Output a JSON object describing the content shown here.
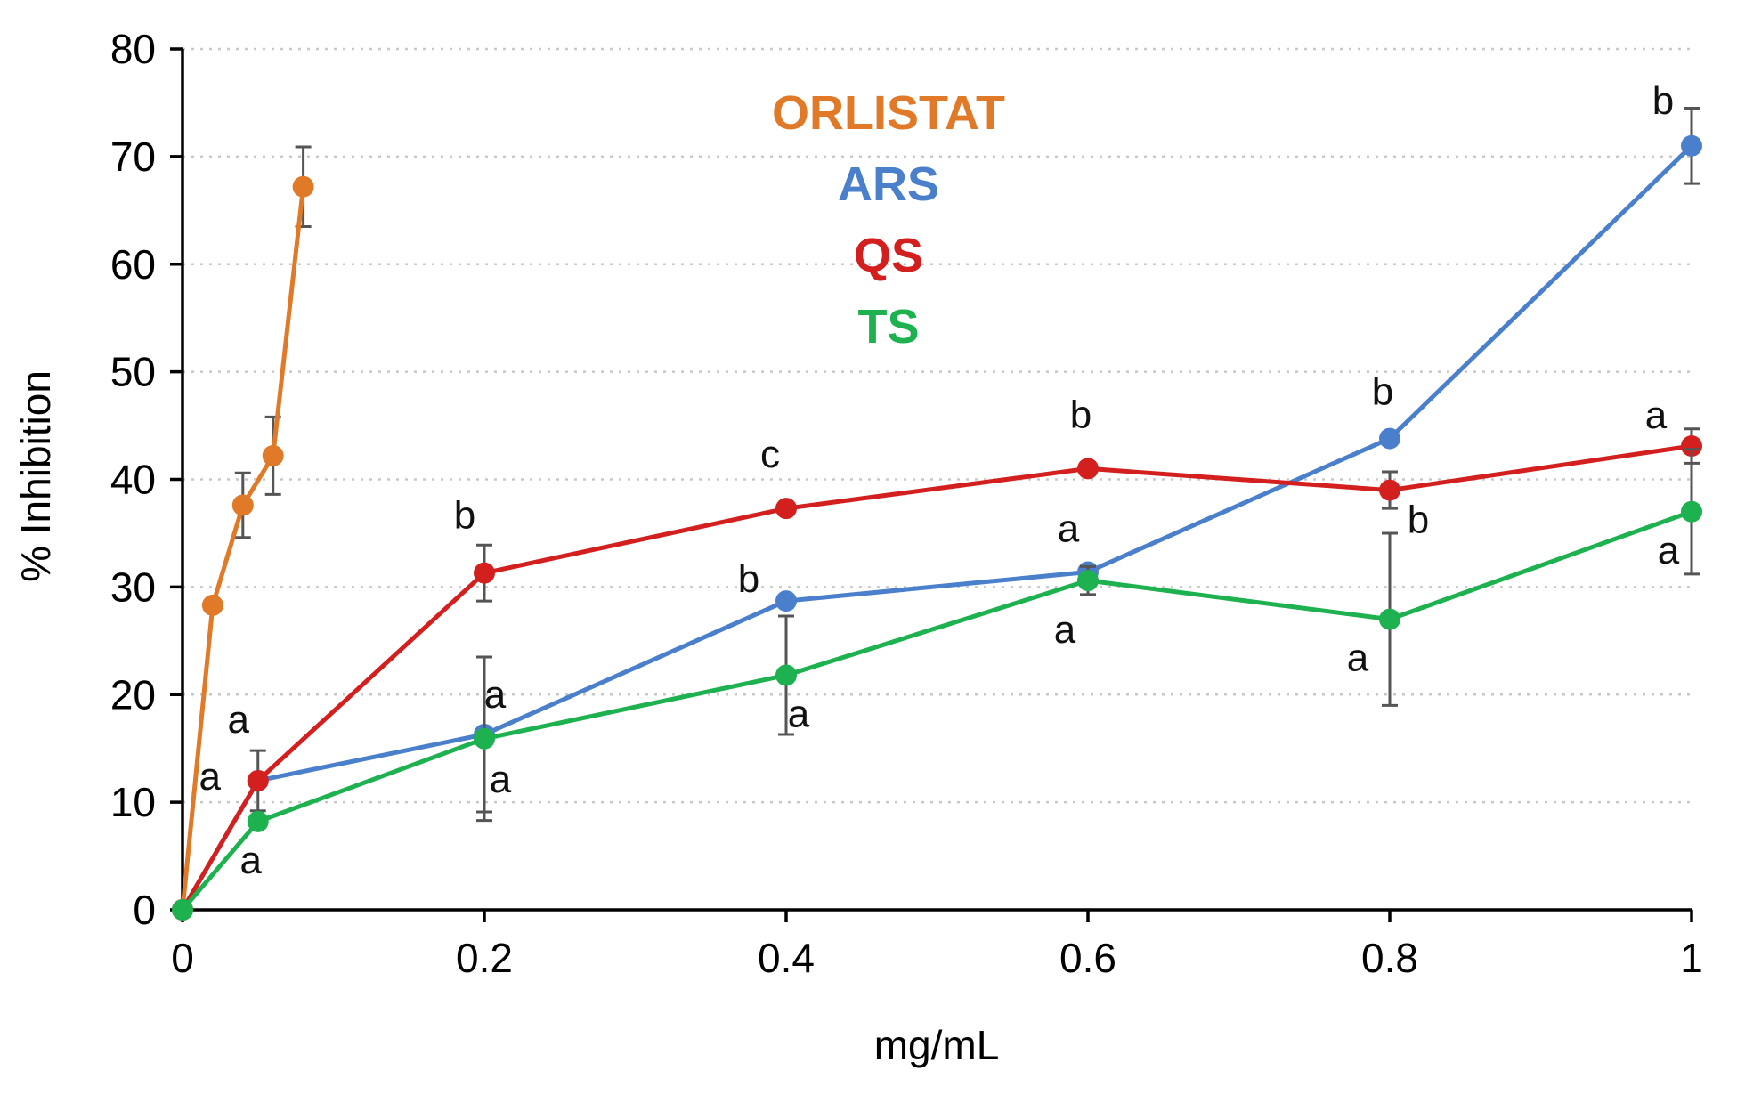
{
  "chart_data": {
    "type": "line",
    "title": "",
    "xlabel": "mg/mL",
    "ylabel": "% Inhibition",
    "xlim": [
      0,
      1
    ],
    "ylim": [
      0,
      80
    ],
    "x_ticks": [
      0,
      0.2,
      0.4,
      0.6,
      0.8,
      1
    ],
    "x_tick_labels": [
      "0",
      "0.2",
      "0.4",
      "0.6",
      "0.8",
      "1"
    ],
    "y_ticks": [
      0,
      10,
      20,
      30,
      40,
      50,
      60,
      70,
      80
    ],
    "y_tick_labels": [
      "0",
      "10",
      "20",
      "30",
      "40",
      "50",
      "60",
      "70",
      "80"
    ],
    "grid": "horizontal dotted",
    "legend_placement": "top-center",
    "series": [
      {
        "name": "ORLISTAT",
        "color": "#E07A28",
        "x": [
          0,
          0.02,
          0.04,
          0.06,
          0.08
        ],
        "values": [
          0,
          28.3,
          37.6,
          42.2,
          67.2
        ],
        "error": [
          0,
          0,
          3.0,
          3.6,
          3.7
        ],
        "annotations": []
      },
      {
        "name": "ARS",
        "color": "#4A7FCB",
        "x": [
          0,
          0.05,
          0.2,
          0.4,
          0.6,
          0.8,
          1
        ],
        "values": [
          0,
          12.0,
          16.3,
          28.7,
          31.4,
          43.8,
          71.0
        ],
        "error": [
          0,
          2.8,
          7.2,
          0,
          0,
          0,
          3.5
        ],
        "annotations": [
          {
            "x": 0.05,
            "text": "a"
          },
          {
            "x": 0.2,
            "text": "a"
          },
          {
            "x": 0.4,
            "text": "b"
          },
          {
            "x": 0.6,
            "text": "a"
          },
          {
            "x": 0.8,
            "text": "b"
          },
          {
            "x": 1,
            "text": "b"
          }
        ]
      },
      {
        "name": "QS",
        "color": "#D41F1F",
        "x": [
          0,
          0.05,
          0.2,
          0.4,
          0.6,
          0.8,
          1
        ],
        "values": [
          0,
          12.0,
          31.3,
          37.3,
          41.0,
          39.0,
          43.1
        ],
        "error": [
          0,
          0,
          2.6,
          0,
          0,
          1.7,
          1.6
        ],
        "annotations": [
          {
            "x": 0.05,
            "text": "a"
          },
          {
            "x": 0.2,
            "text": "b"
          },
          {
            "x": 0.4,
            "text": "c"
          },
          {
            "x": 0.6,
            "text": "b"
          },
          {
            "x": 0.8,
            "text": "b"
          },
          {
            "x": 1,
            "text": "a"
          }
        ]
      },
      {
        "name": "TS",
        "color": "#1DB14F",
        "x": [
          0,
          0.05,
          0.2,
          0.4,
          0.6,
          0.8,
          1
        ],
        "values": [
          0,
          8.2,
          15.9,
          21.8,
          30.6,
          27.0,
          37.0
        ],
        "error": [
          0,
          0,
          7.6,
          5.5,
          1.3,
          8.0,
          5.8
        ],
        "annotations": [
          {
            "x": 0.05,
            "text": "a"
          },
          {
            "x": 0.2,
            "text": "a"
          },
          {
            "x": 0.4,
            "text": "a"
          },
          {
            "x": 0.6,
            "text": "a"
          },
          {
            "x": 0.8,
            "text": "a"
          },
          {
            "x": 1,
            "text": "a"
          }
        ]
      }
    ]
  }
}
